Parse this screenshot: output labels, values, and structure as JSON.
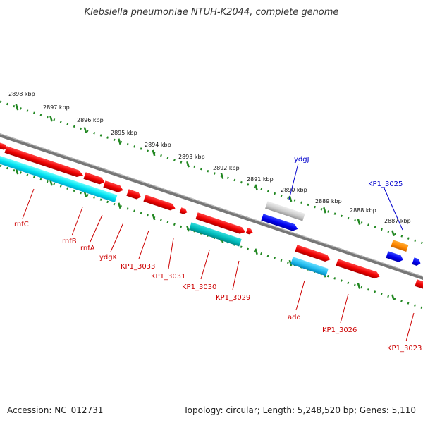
{
  "title": "Klebsiella pneumoniae NTUH-K2044, complete genome",
  "footer": {
    "accession": "Accession: NC_012731",
    "summary": "Topology: circular; Length: 5,248,520 bp; Genes: 5,110"
  },
  "colors": {
    "backbone": "#888888",
    "tick": "#228822",
    "label_red": "#cc0000",
    "label_blue": "#0000cc"
  },
  "scale_labels": [
    "2898 kbp",
    "2897 kbp",
    "2896 kbp",
    "2895 kbp",
    "2894 kbp",
    "2893 kbp",
    "2892 kbp",
    "2891 kbp",
    "2890 kbp",
    "2889 kbp",
    "2888 kbp",
    "2887 kbp"
  ],
  "gene_labels": [
    {
      "name": "rnfC",
      "color": "red"
    },
    {
      "name": "rnfB",
      "color": "red"
    },
    {
      "name": "rnfA",
      "color": "red"
    },
    {
      "name": "ydgK",
      "color": "red"
    },
    {
      "name": "KP1_3033",
      "color": "red"
    },
    {
      "name": "KP1_3031",
      "color": "red"
    },
    {
      "name": "KP1_3030",
      "color": "red"
    },
    {
      "name": "KP1_3029",
      "color": "red"
    },
    {
      "name": "add",
      "color": "red"
    },
    {
      "name": "KP1_3026",
      "color": "red"
    },
    {
      "name": "KP1_3023",
      "color": "red"
    },
    {
      "name": "ydgJ",
      "color": "blue"
    },
    {
      "name": "KP1_3025",
      "color": "blue"
    }
  ]
}
